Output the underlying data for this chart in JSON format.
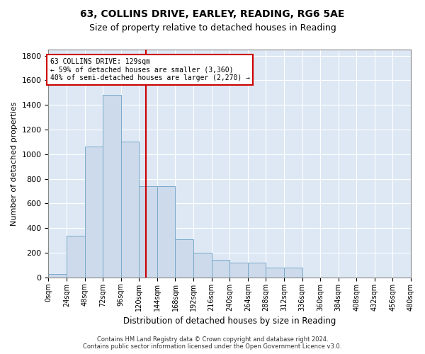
{
  "title_line1": "63, COLLINS DRIVE, EARLEY, READING, RG6 5AE",
  "title_line2": "Size of property relative to detached houses in Reading",
  "xlabel": "Distribution of detached houses by size in Reading",
  "ylabel": "Number of detached properties",
  "footnote": "Contains HM Land Registry data © Crown copyright and database right 2024.\nContains public sector information licensed under the Open Government Licence v3.0.",
  "bin_edges": [
    0,
    24,
    48,
    72,
    96,
    120,
    144,
    168,
    192,
    216,
    240,
    264,
    288,
    312,
    336,
    360,
    384,
    408,
    432,
    456,
    480
  ],
  "bin_counts": [
    30,
    340,
    1060,
    1480,
    1100,
    740,
    740,
    310,
    200,
    140,
    120,
    120,
    80,
    80,
    0,
    0,
    0,
    0,
    0,
    0
  ],
  "bar_color": "#ccdaeb",
  "bar_edge_color": "#7aaaca",
  "property_size": 129,
  "vline_color": "#cc0000",
  "annotation_text": "63 COLLINS DRIVE: 129sqm\n← 59% of detached houses are smaller (3,360)\n40% of semi-detached houses are larger (2,270) →",
  "annotation_box_facecolor": "#ffffff",
  "annotation_box_edgecolor": "#cc0000",
  "ylim": [
    0,
    1850
  ],
  "yticks": [
    0,
    200,
    400,
    600,
    800,
    1000,
    1200,
    1400,
    1600,
    1800
  ],
  "background_color": "#dde8f4",
  "grid_color": "#ffffff",
  "tick_labels": [
    "0sqm",
    "24sqm",
    "48sqm",
    "72sqm",
    "96sqm",
    "120sqm",
    "144sqm",
    "168sqm",
    "192sqm",
    "216sqm",
    "240sqm",
    "264sqm",
    "288sqm",
    "312sqm",
    "336sqm",
    "360sqm",
    "384sqm",
    "408sqm",
    "432sqm",
    "456sqm",
    "480sqm"
  ]
}
